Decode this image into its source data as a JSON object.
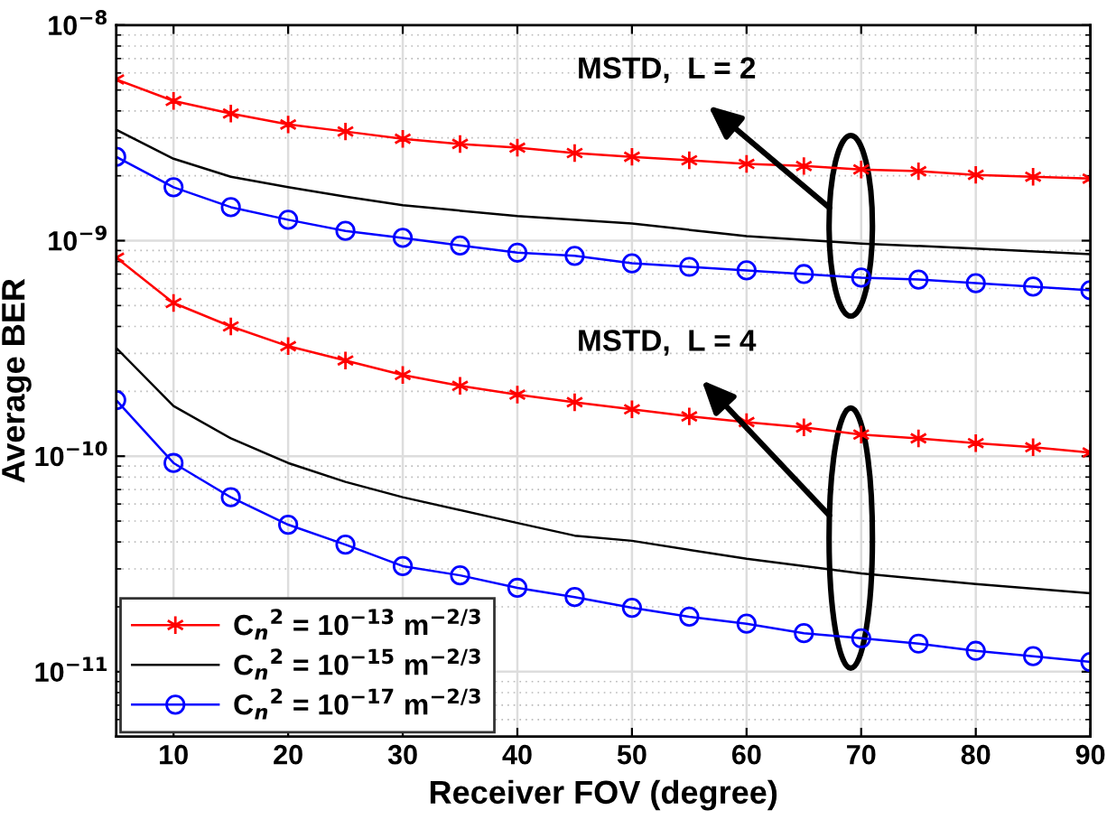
{
  "chart_data": {
    "type": "line",
    "xlabel": "Receiver FOV (degree)",
    "ylabel": "Average BER",
    "log": "y",
    "xlim": [
      5,
      90
    ],
    "xticks": [
      10,
      20,
      30,
      40,
      50,
      60,
      70,
      80,
      90
    ],
    "ylim": [
      5e-12,
      1e-08
    ],
    "yticks": [
      {
        "value": 1e-11,
        "label": "10$^{−11}$"
      },
      {
        "value": 1e-10,
        "label": "10$^{−10}$"
      },
      {
        "value": 1e-09,
        "label": "10$^{−9}$"
      },
      {
        "value": 1e-08,
        "label": "10$^{−8}$"
      }
    ],
    "grid": true,
    "legend": "bottom left",
    "line_style": "solid",
    "series": [
      {
        "name": "C$_{n}$$^{2}$ = 10$^{−13}$ m$^{−2/3}$",
        "color": "#ff0000",
        "marker": "cross",
        "x": [
          5,
          10,
          15,
          20,
          25,
          30,
          35,
          40,
          45,
          50,
          55,
          60,
          65,
          70,
          75,
          80,
          85,
          90
        ],
        "values": [
          5.6e-09,
          4.45e-09,
          3.89e-09,
          3.46e-09,
          3.21e-09,
          2.97e-09,
          2.81e-09,
          2.7e-09,
          2.55e-09,
          2.45e-09,
          2.36e-09,
          2.27e-09,
          2.22e-09,
          2.14e-09,
          2.1e-09,
          2.02e-09,
          1.98e-09,
          1.94e-09
        ]
      },
      {
        "name": "C$_{n}$$^{2}$ = 10$^{−15}$ m$^{−2/3}$",
        "color": "#000000",
        "marker": "none",
        "x": [
          5,
          10,
          15,
          20,
          25,
          30,
          40,
          50,
          60,
          70,
          80,
          90
        ],
        "values": [
          3.27e-09,
          2.4e-09,
          1.98e-09,
          1.77e-09,
          1.6e-09,
          1.46e-09,
          1.3e-09,
          1.2e-09,
          1.05e-09,
          9.7e-10,
          9.2e-10,
          8.65e-10
        ]
      },
      {
        "name": "C$_{n}$$^{2}$ = 10$^{−17}$ m$^{−2/3}$",
        "color": "#0000ff",
        "marker": "circle",
        "x": [
          5,
          10,
          15,
          20,
          25,
          30,
          35,
          40,
          45,
          50,
          55,
          60,
          65,
          70,
          75,
          80,
          85,
          90
        ],
        "values": [
          2.45e-09,
          1.77e-09,
          1.43e-09,
          1.25e-09,
          1.11e-09,
          1.03e-09,
          9.5e-10,
          8.8e-10,
          8.5e-10,
          7.85e-10,
          7.56e-10,
          7.28e-10,
          7e-10,
          6.74e-10,
          6.6e-10,
          6.35e-10,
          6.12e-10,
          5.89e-10
        ]
      },
      {
        "color": "#ff0000",
        "marker": "cross",
        "x": [
          5,
          10,
          15,
          20,
          25,
          30,
          35,
          40,
          45,
          50,
          55,
          60,
          65,
          70,
          75,
          80,
          85,
          90
        ],
        "values": [
          8.34e-10,
          5.14e-10,
          4e-10,
          3.24e-10,
          2.78e-10,
          2.38e-10,
          2.12e-10,
          1.93e-10,
          1.78e-10,
          1.65e-10,
          1.53e-10,
          1.44e-10,
          1.36e-10,
          1.26e-10,
          1.21e-10,
          1.15e-10,
          1.1e-10,
          1.04e-10
        ]
      },
      {
        "color": "#000000",
        "marker": "none",
        "x": [
          5,
          10,
          15,
          20,
          25,
          30,
          40,
          45,
          50,
          60,
          70,
          80,
          90
        ],
        "values": [
          3.18e-10,
          1.71e-10,
          1.21e-10,
          9.3e-11,
          7.6e-11,
          6.45e-11,
          4.9e-11,
          4.28e-11,
          4.05e-11,
          3.34e-11,
          2.86e-11,
          2.55e-11,
          2.31e-11
        ]
      },
      {
        "color": "#0000ff",
        "marker": "circle",
        "x": [
          5,
          10,
          15,
          20,
          25,
          30,
          35,
          40,
          45,
          50,
          55,
          60,
          65,
          70,
          75,
          80,
          85,
          90
        ],
        "values": [
          1.82e-10,
          9.3e-11,
          6.45e-11,
          4.81e-11,
          3.89e-11,
          3.09e-11,
          2.8e-11,
          2.45e-11,
          2.22e-11,
          1.98e-11,
          1.8e-11,
          1.67e-11,
          1.51e-11,
          1.43e-11,
          1.35e-11,
          1.25e-11,
          1.18e-11,
          1.11e-11
        ]
      }
    ],
    "annotations": [
      "MSTD,  L = 2",
      "MSTD,  L = 4"
    ]
  }
}
